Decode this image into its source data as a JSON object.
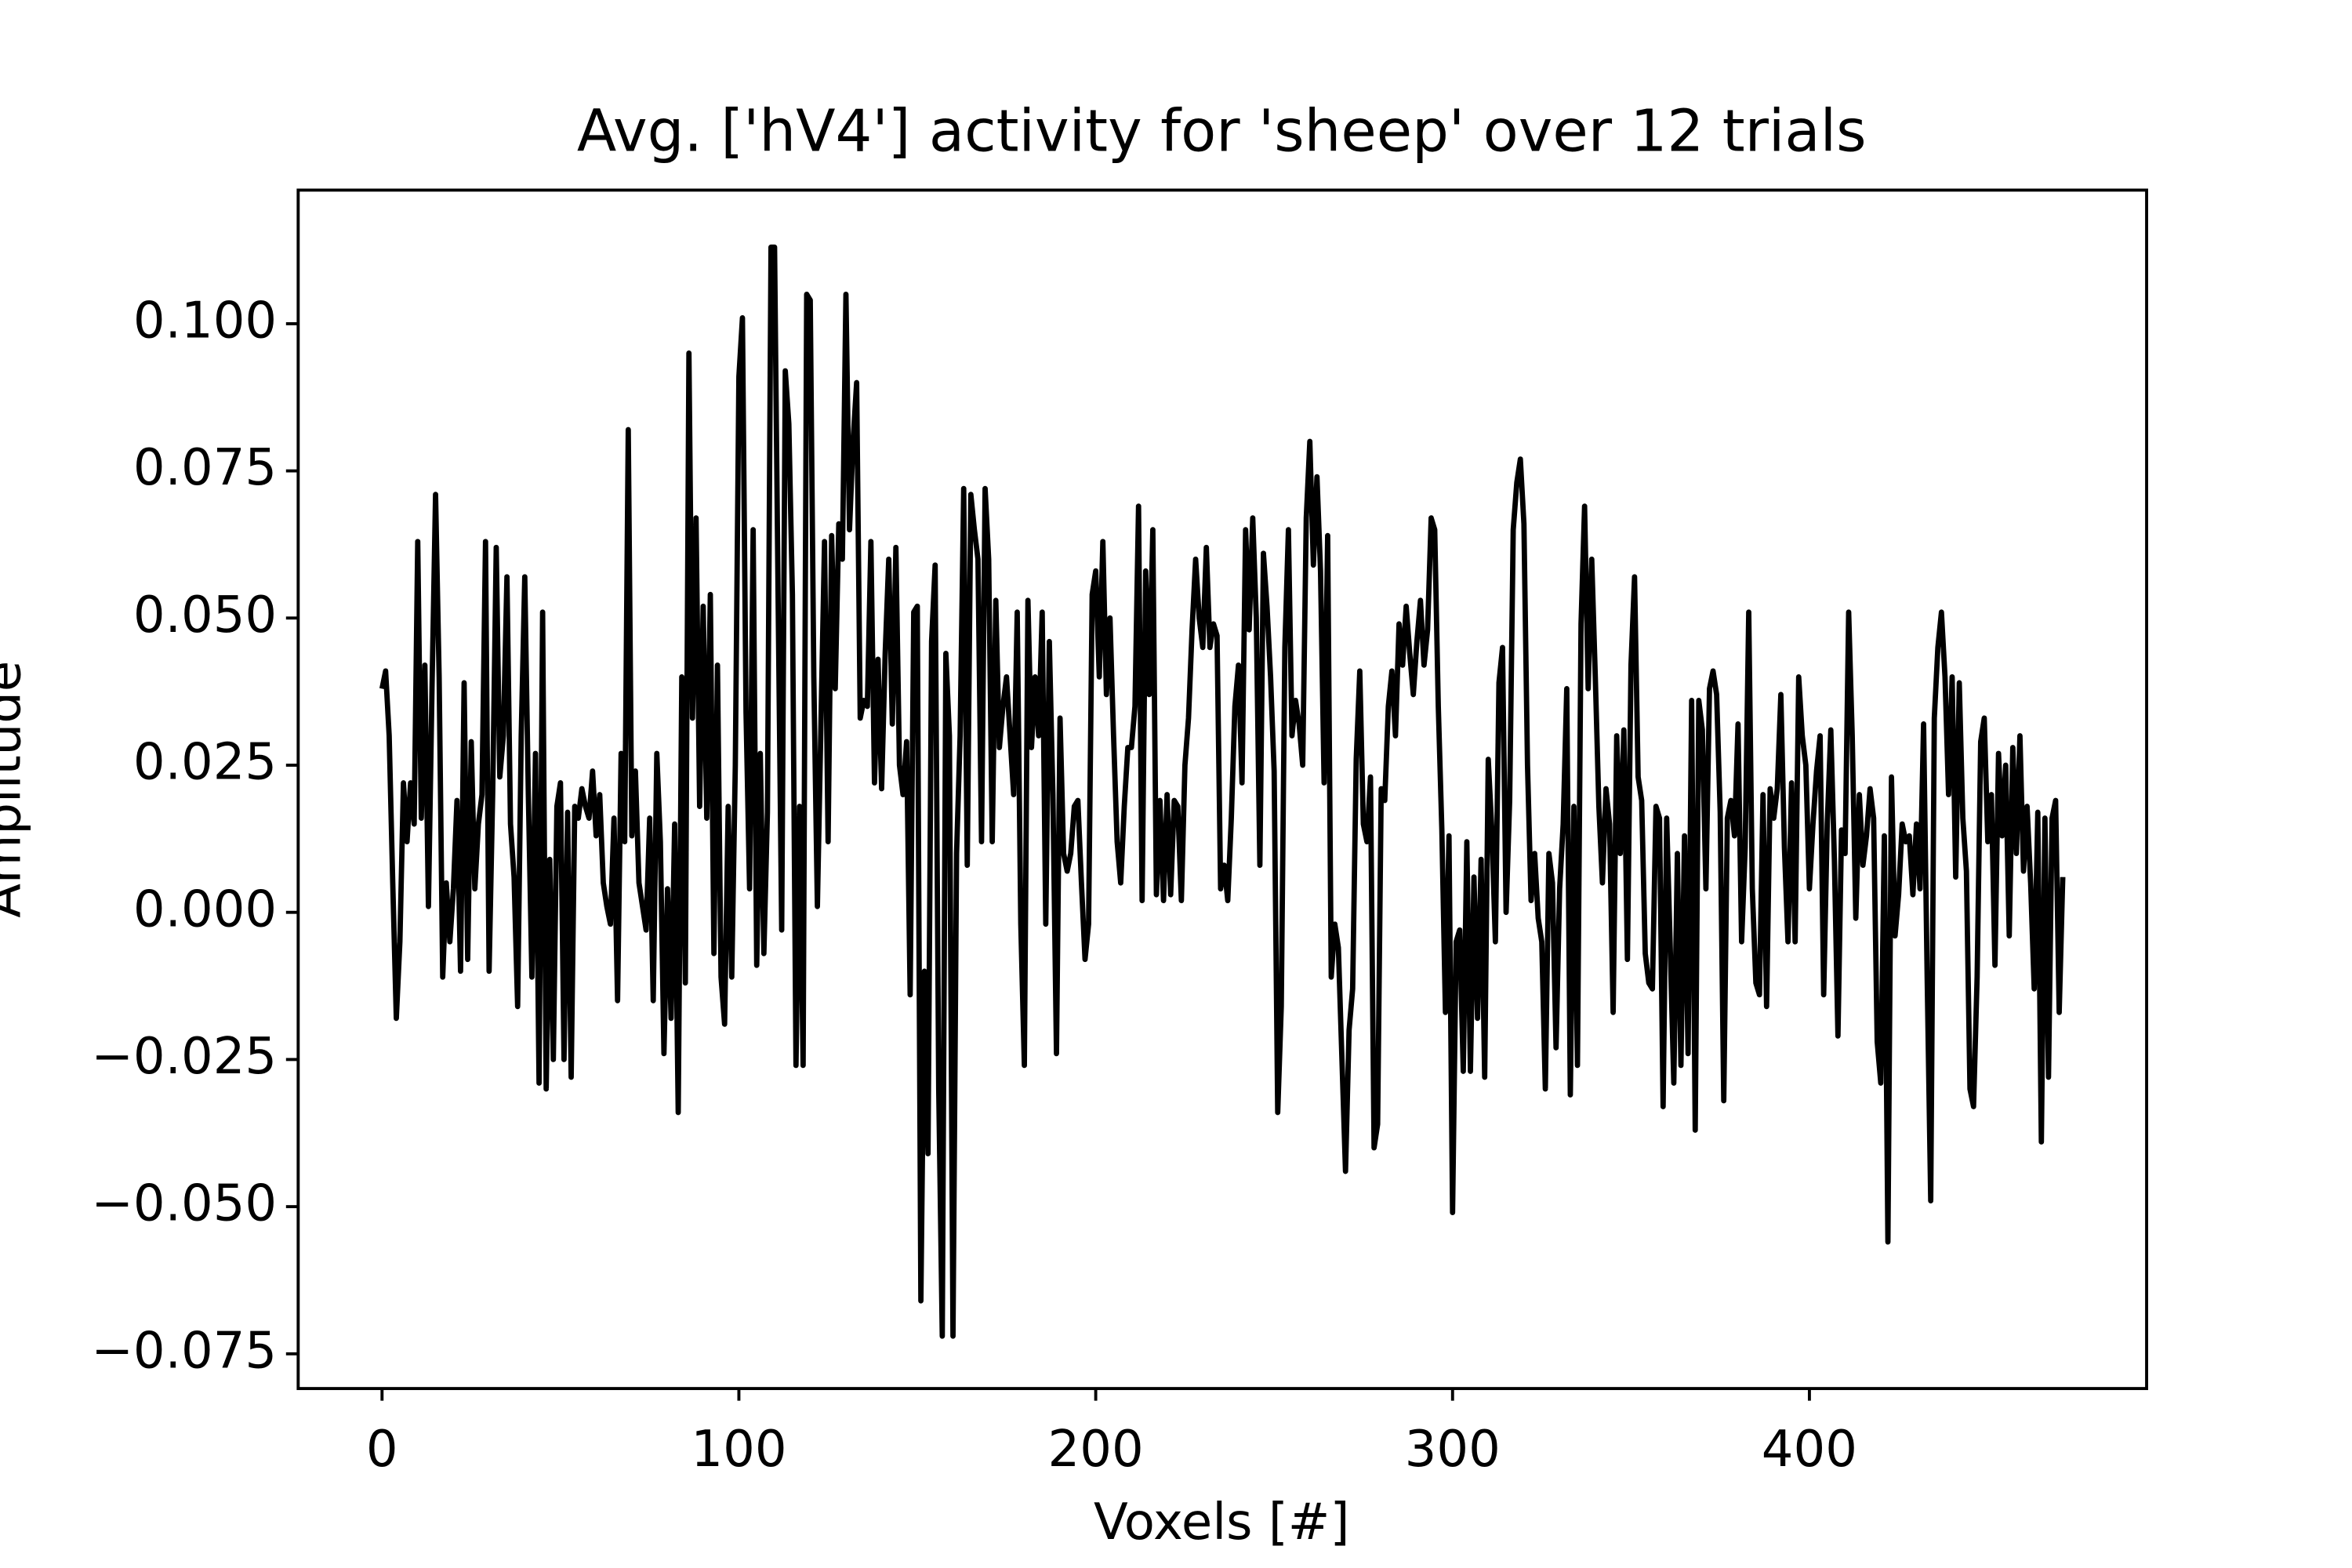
{
  "chart_data": {
    "type": "line",
    "title": "Avg. ['hV4'] activity for 'sheep' over 12 trials",
    "xlabel": "Voxels [#]",
    "ylabel": "Amplitude",
    "color": "#000000",
    "xlim": [
      -23.5,
      494.5
    ],
    "xticks": [
      0,
      100,
      200,
      300,
      400
    ],
    "ylim": [
      -0.0809,
      0.1227
    ],
    "yticks": [
      {
        "value": -0.075,
        "label": "−0.075"
      },
      {
        "value": -0.05,
        "label": "−0.050"
      },
      {
        "value": -0.025,
        "label": "−0.025"
      },
      {
        "value": 0,
        "label": "0.000"
      },
      {
        "value": 0.025,
        "label": "0.025"
      },
      {
        "value": 0.05,
        "label": "0.050"
      },
      {
        "value": 0.075,
        "label": "0.075"
      },
      {
        "value": 0.1,
        "label": "0.100"
      }
    ],
    "values": [
      0.038,
      0.041,
      0.03,
      0.005,
      -0.018,
      -0.005,
      0.022,
      0.012,
      0.022,
      0.015,
      0.063,
      0.016,
      0.042,
      0.001,
      0.038,
      0.071,
      0.04,
      -0.011,
      0.005,
      -0.005,
      0.004,
      0.019,
      -0.01,
      0.039,
      -0.008,
      0.029,
      0.004,
      0.015,
      0.02,
      0.063,
      -0.01,
      0.02,
      0.062,
      0.023,
      0.03,
      0.057,
      0.015,
      0.006,
      -0.016,
      0.03,
      0.057,
      0.02,
      -0.011,
      0.027,
      -0.029,
      0.051,
      -0.03,
      0.009,
      -0.025,
      0.018,
      0.022,
      -0.025,
      0.017,
      -0.028,
      0.018,
      0.016,
      0.021,
      0.018,
      0.016,
      0.024,
      0.013,
      0.02,
      0.005,
      0.001,
      -0.002,
      0.016,
      -0.015,
      0.027,
      0.012,
      0.082,
      0.013,
      0.024,
      0.005,
      0.001,
      -0.003,
      0.016,
      -0.015,
      0.027,
      0.012,
      -0.024,
      0.004,
      -0.018,
      0.015,
      -0.034,
      0.04,
      -0.012,
      0.095,
      0.033,
      0.067,
      0.018,
      0.052,
      0.016,
      0.054,
      -0.007,
      0.042,
      -0.011,
      -0.019,
      0.018,
      -0.011,
      0.025,
      0.091,
      0.101,
      0.034,
      0.004,
      0.065,
      -0.009,
      0.027,
      -0.007,
      0.017,
      0.113,
      0.113,
      0.053,
      -0.003,
      0.092,
      0.083,
      0.054,
      -0.026,
      0.018,
      -0.026,
      0.105,
      0.104,
      0.04,
      0.001,
      0.032,
      0.063,
      0.012,
      0.064,
      0.038,
      0.066,
      0.06,
      0.105,
      0.065,
      0.08,
      0.09,
      0.033,
      0.036,
      0.035,
      0.063,
      0.022,
      0.043,
      0.021,
      0.044,
      0.06,
      0.032,
      0.062,
      0.025,
      0.02,
      0.029,
      -0.014,
      0.051,
      0.052,
      -0.066,
      -0.01,
      -0.041,
      0.046,
      0.059,
      -0.03,
      -0.072,
      0.044,
      0.03,
      -0.072,
      0.01,
      0.03,
      0.072,
      0.008,
      0.071,
      0.065,
      0.06,
      0.012,
      0.072,
      0.06,
      0.012,
      0.053,
      0.028,
      0.035,
      0.04,
      0.03,
      0.02,
      0.051,
      -0.002,
      -0.026,
      0.053,
      0.028,
      0.04,
      0.03,
      0.051,
      -0.002,
      0.046,
      0.02,
      -0.024,
      0.033,
      0.01,
      0.007,
      0.01,
      0.018,
      0.019,
      0.005,
      -0.008,
      -0.002,
      0.054,
      0.058,
      0.04,
      0.063,
      0.037,
      0.05,
      0.03,
      0.012,
      0.005,
      0.018,
      0.028,
      0.028,
      0.035,
      0.069,
      0.002,
      0.058,
      0.037,
      0.065,
      0.003,
      0.019,
      0.002,
      0.02,
      0.003,
      0.019,
      0.018,
      0.002,
      0.025,
      0.033,
      0.048,
      0.06,
      0.05,
      0.045,
      0.062,
      0.045,
      0.049,
      0.047,
      0.004,
      0.008,
      0.002,
      0.016,
      0.035,
      0.042,
      0.022,
      0.065,
      0.048,
      0.067,
      0.05,
      0.008,
      0.061,
      0.052,
      0.04,
      0.024,
      -0.034,
      -0.016,
      0.045,
      0.065,
      0.03,
      0.036,
      0.032,
      0.025,
      0.067,
      0.08,
      0.059,
      0.074,
      0.058,
      0.022,
      0.064,
      -0.011,
      -0.002,
      -0.006,
      -0.025,
      -0.044,
      -0.02,
      -0.013,
      0.026,
      0.041,
      0.015,
      0.012,
      0.023,
      -0.04,
      -0.036,
      0.021,
      0.019,
      0.035,
      0.041,
      0.03,
      0.049,
      0.042,
      0.052,
      0.044,
      0.037,
      0.046,
      0.053,
      0.042,
      0.048,
      0.067,
      0.065,
      0.035,
      0.014,
      -0.017,
      0.013,
      -0.051,
      -0.005,
      -0.003,
      -0.027,
      0.012,
      -0.027,
      0.006,
      -0.018,
      0.009,
      -0.028,
      0.026,
      0.014,
      -0.005,
      0.039,
      0.045,
      0.0,
      0.019,
      0.065,
      0.073,
      0.077,
      0.066,
      0.025,
      0.002,
      0.01,
      -0.001,
      -0.005,
      -0.03,
      0.01,
      0.005,
      -0.023,
      0.004,
      0.015,
      0.038,
      -0.031,
      0.018,
      -0.026,
      0.049,
      0.069,
      0.038,
      0.06,
      0.04,
      0.018,
      0.005,
      0.021,
      0.015,
      -0.017,
      0.03,
      0.01,
      0.031,
      -0.008,
      0.042,
      0.057,
      0.023,
      0.019,
      -0.007,
      -0.012,
      -0.013,
      0.018,
      0.016,
      -0.033,
      0.016,
      -0.006,
      -0.029,
      0.01,
      -0.026,
      0.013,
      -0.024,
      0.036,
      -0.037,
      0.036,
      0.031,
      0.004,
      0.038,
      0.041,
      0.037,
      0.017,
      -0.032,
      0.016,
      0.019,
      0.013,
      0.032,
      -0.005,
      0.011,
      0.051,
      0.004,
      -0.012,
      -0.014,
      0.02,
      -0.016,
      0.021,
      0.016,
      0.021,
      0.037,
      0.011,
      -0.005,
      0.022,
      -0.005,
      0.04,
      0.03,
      0.025,
      0.004,
      0.015,
      0.024,
      0.03,
      -0.014,
      0.015,
      0.031,
      0.009,
      -0.021,
      0.014,
      0.01,
      0.051,
      0.03,
      -0.001,
      0.02,
      0.008,
      0.013,
      0.021,
      0.016,
      -0.022,
      -0.029,
      0.013,
      -0.056,
      0.023,
      -0.004,
      0.003,
      0.015,
      0.012,
      0.013,
      0.003,
      0.015,
      0.004,
      0.032,
      -0.011,
      -0.049,
      0.033,
      0.045,
      0.051,
      0.04,
      0.02,
      0.04,
      0.006,
      0.039,
      0.016,
      0.007,
      -0.03,
      -0.033,
      -0.011,
      0.029,
      0.033,
      0.012,
      0.02,
      -0.009,
      0.027,
      0.013,
      0.025,
      -0.004,
      0.028,
      0.01,
      0.03,
      0.007,
      0.018,
      0.005,
      -0.013,
      0.017,
      -0.039,
      0.016,
      -0.028,
      0.016,
      0.019,
      -0.017,
      0.006
    ]
  }
}
